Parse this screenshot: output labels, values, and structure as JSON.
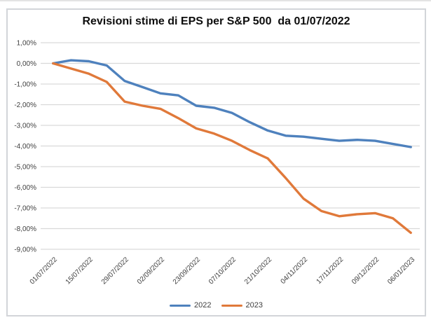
{
  "title": "Revisioni stime di EPS per S&P 500  da 01/07/2022",
  "chart_data": {
    "type": "line",
    "title": "Revisioni stime di EPS per S&P 500  da 01/07/2022",
    "xlabel": "",
    "ylabel": "",
    "grid": "horizontal",
    "y_axis": {
      "max": 1,
      "min": -9,
      "step": 1,
      "unit": "%",
      "tick_labels": [
        "1,00%",
        "0,00%",
        "-1,00%",
        "-2,00%",
        "-3,00%",
        "-4,00%",
        "-5,00%",
        "-6,00%",
        "-7,00%",
        "-8,00%",
        "-9,00%"
      ]
    },
    "x_axis": {
      "n_points": 21,
      "tick_every": 2,
      "visible_tick_labels": [
        "01/07/2022",
        "15/07/2022",
        "29/07/2022",
        "02/09/2022",
        "23/09/2022",
        "07/10/2022",
        "21/10/2022",
        "04/11/2022",
        "17/11/2022",
        "09/12/2022",
        "06/01/2023"
      ],
      "label_rotation_deg": -45
    },
    "series": [
      {
        "name": "2022",
        "color": "#4e81bd",
        "values": [
          0.0,
          0.15,
          0.1,
          -0.1,
          -0.85,
          -1.15,
          -1.45,
          -1.55,
          -2.05,
          -2.15,
          -2.4,
          -2.85,
          -3.25,
          -3.5,
          -3.55,
          -3.65,
          -3.75,
          -3.7,
          -3.75,
          -3.9,
          -4.05
        ]
      },
      {
        "name": "2023",
        "color": "#e0793a",
        "values": [
          0.0,
          -0.25,
          -0.5,
          -0.9,
          -1.85,
          -2.05,
          -2.2,
          -2.65,
          -3.15,
          -3.4,
          -3.75,
          -4.2,
          -4.6,
          -5.55,
          -6.55,
          -7.15,
          -7.4,
          -7.3,
          -7.25,
          -7.5,
          -8.2
        ]
      }
    ],
    "legend": {
      "position": "bottom",
      "entries": [
        "2022",
        "2023"
      ]
    },
    "colors": {
      "gridline": "#d9d9d9",
      "axis_text": "#404040",
      "title_text": "#0d0d0d",
      "frame_border": "#d2d5d9",
      "background": "#ffffff"
    }
  }
}
